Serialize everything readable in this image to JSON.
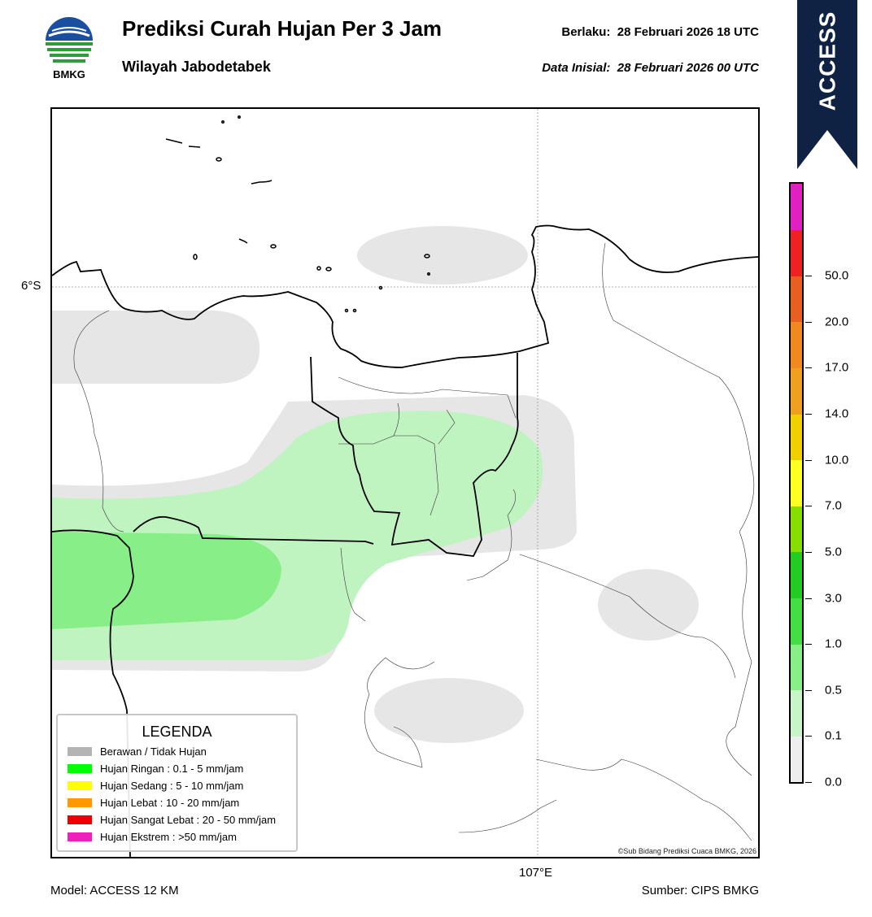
{
  "header": {
    "logo_text": "BMKG",
    "title": "Prediksi Curah Hujan Per 3 Jam",
    "subtitle": "Wilayah Jabodetabek",
    "valid_label": "Berlaku:",
    "valid_value": "28 Februari 2026 18 UTC",
    "init_label": "Data Inisial:",
    "init_value": "28 Februari 2026 00 UTC",
    "model_banner": "ACCESS"
  },
  "map": {
    "lat_label": "6°S",
    "lon_label": "107°E",
    "credit": "©Sub Bidang Prediksi Cuaca BMKG, 2026",
    "colors": {
      "cloud": "#e6e6e6",
      "light_rain_01": "#bff3bf",
      "light_rain_05": "#88ee88",
      "boundary": "#000000"
    }
  },
  "legend": {
    "title": "LEGENDA",
    "items": [
      {
        "label": "Berawan / Tidak Hujan",
        "color": "#b4b4b4"
      },
      {
        "label": "Hujan Ringan : 0.1 - 5 mm/jam",
        "color": "#00ff00"
      },
      {
        "label": "Hujan Sedang : 5 - 10 mm/jam",
        "color": "#ffff00"
      },
      {
        "label": "Hujan Lebat : 10 - 20 mm/jam",
        "color": "#ff9900"
      },
      {
        "label": "Hujan Sangat Lebat : 20 - 50 mm/jam",
        "color": "#ee0000"
      },
      {
        "label": "Hujan Ekstrem : >50 mm/jam",
        "color": "#ee22bb"
      }
    ]
  },
  "colorbar": {
    "ticks": [
      "0.0",
      "0.1",
      "0.5",
      "1.0",
      "3.0",
      "5.0",
      "7.0",
      "10.0",
      "14.0",
      "17.0",
      "20.0",
      "50.0"
    ],
    "colors": [
      "#eeeeee",
      "#c8f5c8",
      "#88ee88",
      "#44dd44",
      "#22cc22",
      "#88dd00",
      "#ffff22",
      "#f0d000",
      "#f0a020",
      "#f08a20",
      "#e86020",
      "#ee2222",
      "#e020c0"
    ]
  },
  "footer": {
    "model": "Model: ACCESS 12 KM",
    "source": "Sumber: CIPS BMKG"
  }
}
